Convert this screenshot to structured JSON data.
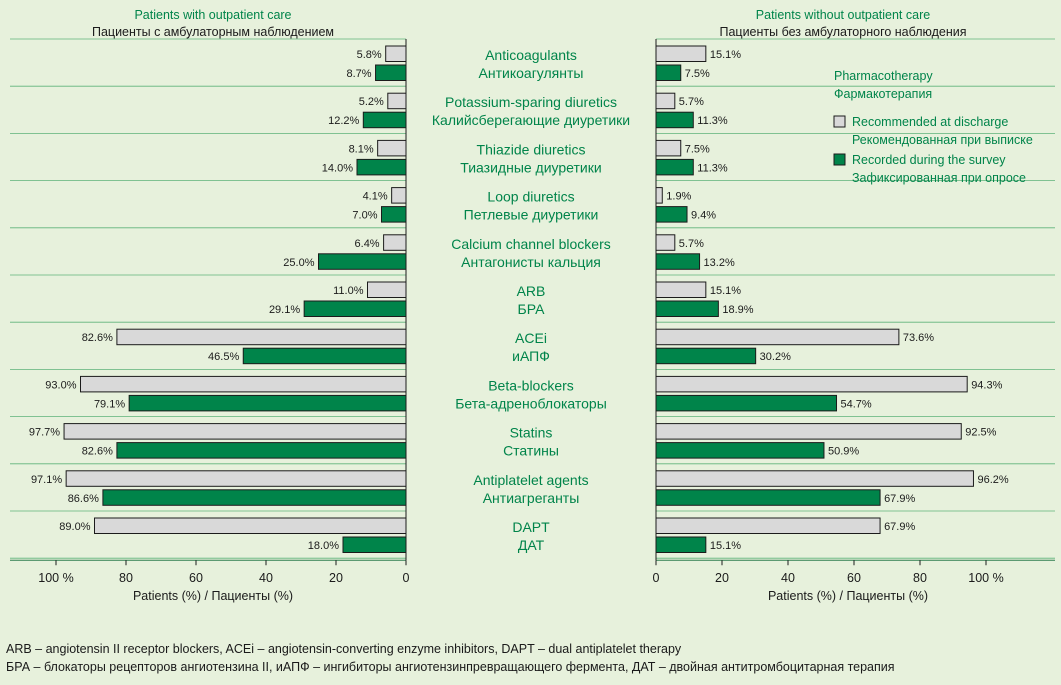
{
  "chart_data": {
    "type": "bar",
    "orientation": "horizontal",
    "panels": [
      {
        "title_en": "Patients with outpatient care",
        "title_ru": "Пациенты с амбулаторным наблюдением",
        "xlabel": "Patients (%) / Пациенты (%)",
        "xlim": [
          0,
          100
        ],
        "x_reversed": true,
        "ticks": [
          "100 %",
          "80",
          "60",
          "40",
          "20",
          "0"
        ],
        "series": [
          {
            "name": "Recommended at discharge",
            "values": [
              5.8,
              5.2,
              8.1,
              4.1,
              6.4,
              11.0,
              82.6,
              93.0,
              97.7,
              97.1,
              89.0
            ]
          },
          {
            "name": "Recorded during the survey",
            "values": [
              8.7,
              12.2,
              14.0,
              7.0,
              25.0,
              29.1,
              46.5,
              79.1,
              82.6,
              86.6,
              18.0
            ]
          }
        ]
      },
      {
        "title_en": "Patients without outpatient care",
        "title_ru": "Пациенты без амбулаторного наблюдения",
        "xlabel": "Patients (%) / Пациенты (%)",
        "xlim": [
          0,
          100
        ],
        "x_reversed": false,
        "ticks": [
          "0",
          "20",
          "40",
          "60",
          "80",
          "100 %"
        ],
        "series": [
          {
            "name": "Recommended at discharge",
            "values": [
              15.1,
              5.7,
              7.5,
              1.9,
              5.7,
              15.1,
              73.6,
              94.3,
              92.5,
              96.2,
              67.9
            ]
          },
          {
            "name": "Recorded during the survey",
            "values": [
              7.5,
              11.3,
              11.3,
              9.4,
              13.2,
              18.9,
              30.2,
              54.7,
              50.9,
              67.9,
              15.1
            ]
          }
        ]
      }
    ],
    "categories": [
      {
        "en": "Anticoagulants",
        "ru": "Антикоагулянты"
      },
      {
        "en": "Potassium-sparing diuretics",
        "ru": "Калийсберегающие диуретики"
      },
      {
        "en": "Thiazide diuretics",
        "ru": "Тиазидные диуретики"
      },
      {
        "en": "Loop diuretics",
        "ru": "Петлевые диуретики"
      },
      {
        "en": "Calcium channel blockers",
        "ru": "Антагонисты кальция"
      },
      {
        "en": "ARB",
        "ru": "БРА"
      },
      {
        "en": "ACEi",
        "ru": "иАПФ"
      },
      {
        "en": "Beta-blockers",
        "ru": "Бета-адреноблокаторы"
      },
      {
        "en": "Statins",
        "ru": "Статины"
      },
      {
        "en": "Antiplatelet agents",
        "ru": "Антиагреганты"
      },
      {
        "en": "DAPT",
        "ru": "ДАТ"
      }
    ],
    "legend": {
      "title_en": "Pharmacotherapy",
      "title_ru": "Фармакотерапия",
      "placement": "top-right",
      "items": [
        {
          "en": "Recommended at discharge",
          "ru": "Рекомендованная при выписке",
          "color": "#d9d9d9"
        },
        {
          "en": "Recorded during the survey",
          "ru": "Зафиксированная при опросе",
          "color": "#00844a"
        }
      ]
    },
    "colors": {
      "recommended": "#d9d9d9",
      "recorded": "#00844a",
      "accent": "#00844a",
      "background": "#e7f1dc"
    },
    "value_suffix": "%",
    "grid": false
  },
  "footnotes": {
    "en": "ARB – angiotensin II receptor blockers, ACEi – angiotensin-converting enzyme inhibitors, DAPT – dual antiplatelet therapy",
    "ru": "БРА – блокаторы рецепторов ангиотензина II, иАПФ – ингибиторы ангиотензинпревращающего фермента, ДАТ – двойная антитромбоцитарная терапия"
  }
}
